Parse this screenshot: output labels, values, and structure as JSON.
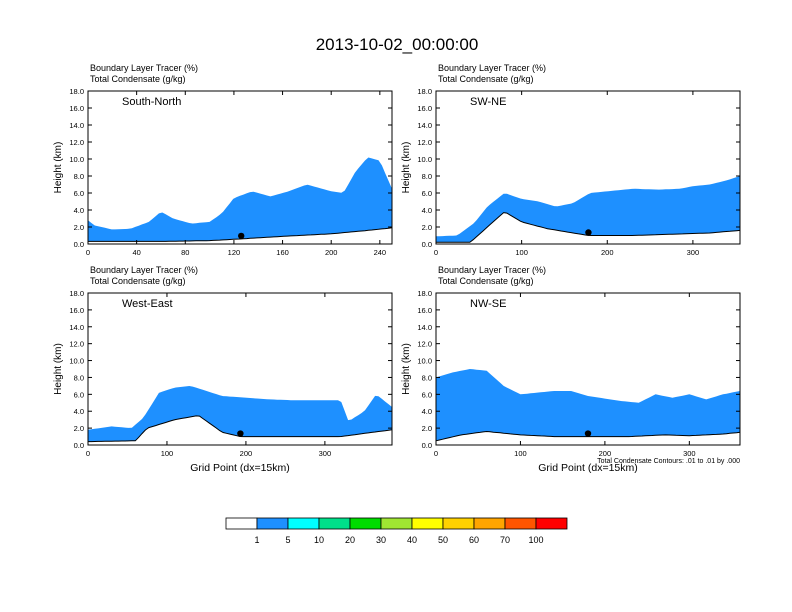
{
  "title": "2013-10-02_00:00:00",
  "footnote": "Total Condensate Contours: .01 to .01 by .000",
  "colorbar": {
    "levels": [
      "1",
      "5",
      "10",
      "20",
      "30",
      "40",
      "50",
      "60",
      "70",
      "100"
    ],
    "colors": [
      "#ffffff",
      "#1e90ff",
      "#00ffff",
      "#00e08a",
      "#00dc00",
      "#a0e632",
      "#ffff00",
      "#ffd200",
      "#ffa500",
      "#ff5500",
      "#ff0000"
    ]
  },
  "chart_data": [
    {
      "type": "heatmap",
      "panel_label": "South-North",
      "header_line1": "Boundary Layer Tracer   (%)",
      "header_line2": "Total Condensate   (g/kg)",
      "ylabel": "Height (km)",
      "xlabel": "",
      "xlim": [
        0,
        250
      ],
      "ylim": [
        0,
        18
      ],
      "xticks": [
        "0",
        "40",
        "80",
        "120",
        "160",
        "200",
        "240"
      ],
      "yticks": [
        "0.0",
        "2.0",
        "4.0",
        "6.0",
        "8.0",
        "10.0",
        "12.0",
        "14.0",
        "16.0",
        "18.0"
      ],
      "marker_x": 126,
      "tracer_top": [
        [
          0,
          2.8
        ],
        [
          5,
          2.2
        ],
        [
          20,
          1.7
        ],
        [
          35,
          1.8
        ],
        [
          50,
          2.6
        ],
        [
          60,
          3.8
        ],
        [
          70,
          3.0
        ],
        [
          85,
          2.4
        ],
        [
          100,
          2.6
        ],
        [
          110,
          3.6
        ],
        [
          120,
          5.4
        ],
        [
          135,
          6.2
        ],
        [
          150,
          5.6
        ],
        [
          165,
          6.2
        ],
        [
          180,
          7.0
        ],
        [
          200,
          6.2
        ],
        [
          210,
          6.0
        ],
        [
          220,
          8.5
        ],
        [
          230,
          10.2
        ],
        [
          240,
          9.8
        ],
        [
          250,
          6.5
        ]
      ],
      "terrain_top": [
        [
          0,
          0.3
        ],
        [
          60,
          0.3
        ],
        [
          100,
          0.4
        ],
        [
          126,
          0.6
        ],
        [
          160,
          0.9
        ],
        [
          200,
          1.2
        ],
        [
          230,
          1.6
        ],
        [
          250,
          1.9
        ]
      ]
    },
    {
      "type": "heatmap",
      "panel_label": "SW-NE",
      "header_line1": "Boundary Layer Tracer   (%)",
      "header_line2": "Total Condensate   (g/kg)",
      "ylabel": "Height (km)",
      "xlabel": "",
      "xlim": [
        0,
        355
      ],
      "ylim": [
        0,
        18
      ],
      "xticks": [
        "0",
        "100",
        "200",
        "300"
      ],
      "yticks": [
        "0.0",
        "2.0",
        "4.0",
        "6.0",
        "8.0",
        "10.0",
        "12.0",
        "14.0",
        "16.0",
        "18.0"
      ],
      "marker_x": 178,
      "tracer_top": [
        [
          0,
          0.9
        ],
        [
          25,
          1.0
        ],
        [
          45,
          2.5
        ],
        [
          60,
          4.4
        ],
        [
          80,
          6.0
        ],
        [
          100,
          5.3
        ],
        [
          120,
          5.0
        ],
        [
          140,
          4.4
        ],
        [
          160,
          4.8
        ],
        [
          180,
          6.0
        ],
        [
          200,
          6.2
        ],
        [
          230,
          6.5
        ],
        [
          260,
          6.4
        ],
        [
          285,
          6.5
        ],
        [
          300,
          6.8
        ],
        [
          320,
          7.0
        ],
        [
          340,
          7.5
        ],
        [
          355,
          8.0
        ]
      ],
      "terrain_top": [
        [
          0,
          0.2
        ],
        [
          40,
          0.2
        ],
        [
          60,
          2.0
        ],
        [
          80,
          3.8
        ],
        [
          100,
          2.6
        ],
        [
          130,
          1.8
        ],
        [
          178,
          1.0
        ],
        [
          230,
          1.0
        ],
        [
          290,
          1.2
        ],
        [
          320,
          1.3
        ],
        [
          355,
          1.6
        ]
      ]
    },
    {
      "type": "heatmap",
      "panel_label": "West-East",
      "header_line1": "Boundary Layer Tracer   (%)",
      "header_line2": "Total Condensate   (g/kg)",
      "ylabel": "Height (km)",
      "xlabel": "Grid Point (dx=15km)",
      "xlim": [
        0,
        385
      ],
      "ylim": [
        0,
        18
      ],
      "xticks": [
        "0",
        "100",
        "200",
        "300"
      ],
      "yticks": [
        "0.0",
        "2.0",
        "4.0",
        "6.0",
        "8.0",
        "10.0",
        "12.0",
        "14.0",
        "16.0",
        "18.0"
      ],
      "marker_x": 193,
      "tracer_top": [
        [
          0,
          1.8
        ],
        [
          30,
          2.2
        ],
        [
          55,
          2.0
        ],
        [
          70,
          3.2
        ],
        [
          90,
          6.2
        ],
        [
          110,
          6.8
        ],
        [
          130,
          7.0
        ],
        [
          150,
          6.4
        ],
        [
          170,
          5.8
        ],
        [
          200,
          5.6
        ],
        [
          230,
          5.4
        ],
        [
          260,
          5.3
        ],
        [
          290,
          5.3
        ],
        [
          320,
          5.3
        ],
        [
          330,
          2.8
        ],
        [
          350,
          4.0
        ],
        [
          365,
          6.0
        ],
        [
          385,
          4.5
        ]
      ],
      "terrain_top": [
        [
          0,
          0.4
        ],
        [
          60,
          0.5
        ],
        [
          75,
          2.0
        ],
        [
          110,
          3.0
        ],
        [
          140,
          3.5
        ],
        [
          170,
          1.5
        ],
        [
          193,
          1.0
        ],
        [
          250,
          1.0
        ],
        [
          320,
          1.0
        ],
        [
          360,
          1.5
        ],
        [
          385,
          1.8
        ]
      ]
    },
    {
      "type": "heatmap",
      "panel_label": "NW-SE",
      "header_line1": "Boundary Layer Tracer   (%)",
      "header_line2": "Total Condensate   (g/kg)",
      "ylabel": "Height (km)",
      "xlabel": "Grid Point (dx=15km)",
      "xlim": [
        0,
        360
      ],
      "ylim": [
        0,
        18
      ],
      "xticks": [
        "0",
        "100",
        "200",
        "300"
      ],
      "yticks": [
        "0.0",
        "2.0",
        "4.0",
        "6.0",
        "8.0",
        "10.0",
        "12.0",
        "14.0",
        "16.0",
        "18.0"
      ],
      "marker_x": 180,
      "tracer_top": [
        [
          0,
          8.0
        ],
        [
          20,
          8.6
        ],
        [
          40,
          9.0
        ],
        [
          60,
          8.8
        ],
        [
          80,
          7.0
        ],
        [
          100,
          6.0
        ],
        [
          140,
          6.4
        ],
        [
          160,
          6.4
        ],
        [
          180,
          5.8
        ],
        [
          220,
          5.2
        ],
        [
          240,
          5.0
        ],
        [
          260,
          6.0
        ],
        [
          280,
          5.6
        ],
        [
          300,
          6.0
        ],
        [
          320,
          5.4
        ],
        [
          340,
          6.0
        ],
        [
          360,
          6.4
        ]
      ],
      "terrain_top": [
        [
          0,
          0.5
        ],
        [
          30,
          1.2
        ],
        [
          60,
          1.6
        ],
        [
          100,
          1.2
        ],
        [
          140,
          1.0
        ],
        [
          180,
          1.0
        ],
        [
          230,
          1.0
        ],
        [
          270,
          1.2
        ],
        [
          300,
          1.1
        ],
        [
          340,
          1.3
        ],
        [
          360,
          1.5
        ]
      ]
    }
  ]
}
